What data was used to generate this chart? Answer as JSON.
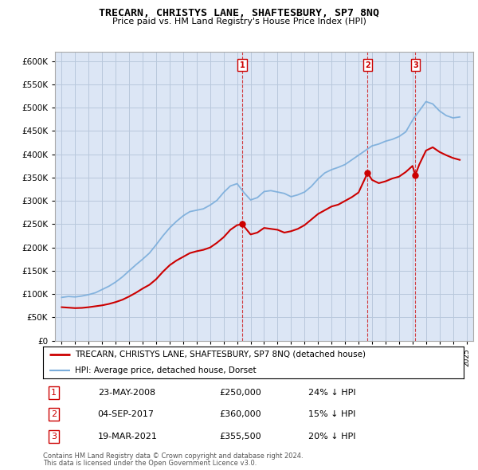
{
  "title": "TRECARN, CHRISTYS LANE, SHAFTESBURY, SP7 8NQ",
  "subtitle": "Price paid vs. HM Land Registry's House Price Index (HPI)",
  "hpi_label": "HPI: Average price, detached house, Dorset",
  "property_label": "TRECARN, CHRISTYS LANE, SHAFTESBURY, SP7 8NQ (detached house)",
  "transactions": [
    {
      "num": 1,
      "date": "23-MAY-2008",
      "price": 250000,
      "pct": "24%",
      "x": 2008.38
    },
    {
      "num": 2,
      "date": "04-SEP-2017",
      "price": 360000,
      "pct": "15%",
      "x": 2017.67
    },
    {
      "num": 3,
      "date": "19-MAR-2021",
      "price": 355500,
      "pct": "20%",
      "x": 2021.21
    }
  ],
  "footer_line1": "Contains HM Land Registry data © Crown copyright and database right 2024.",
  "footer_line2": "This data is licensed under the Open Government Licence v3.0.",
  "ylim": [
    0,
    620000
  ],
  "xlim": [
    1994.5,
    2025.5
  ],
  "yticks": [
    0,
    50000,
    100000,
    150000,
    200000,
    250000,
    300000,
    350000,
    400000,
    450000,
    500000,
    550000,
    600000
  ],
  "plot_bg": "#dce6f5",
  "grid_color": "#b8c8dc",
  "red_color": "#cc0000",
  "blue_color": "#7aaddb",
  "hpi_x": [
    1995,
    1995.5,
    1996,
    1996.5,
    1997,
    1997.5,
    1998,
    1998.5,
    1999,
    1999.5,
    2000,
    2000.5,
    2001,
    2001.5,
    2002,
    2002.5,
    2003,
    2003.5,
    2004,
    2004.5,
    2005,
    2005.5,
    2006,
    2006.5,
    2007,
    2007.5,
    2008,
    2008.5,
    2009,
    2009.5,
    2010,
    2010.5,
    2011,
    2011.5,
    2012,
    2012.5,
    2013,
    2013.5,
    2014,
    2014.5,
    2015,
    2015.5,
    2016,
    2016.5,
    2017,
    2017.5,
    2018,
    2018.5,
    2019,
    2019.5,
    2020,
    2020.5,
    2021,
    2021.5,
    2022,
    2022.5,
    2023,
    2023.5,
    2024,
    2024.5
  ],
  "hpi_y": [
    93000,
    95000,
    94000,
    96000,
    99000,
    103000,
    110000,
    117000,
    126000,
    137000,
    150000,
    163000,
    175000,
    188000,
    206000,
    225000,
    242000,
    256000,
    268000,
    277000,
    280000,
    283000,
    291000,
    301000,
    318000,
    332000,
    337000,
    318000,
    302000,
    307000,
    320000,
    322000,
    319000,
    316000,
    309000,
    313000,
    319000,
    331000,
    347000,
    360000,
    367000,
    372000,
    378000,
    388000,
    398000,
    408000,
    418000,
    422000,
    428000,
    432000,
    438000,
    448000,
    473000,
    493000,
    513000,
    508000,
    493000,
    483000,
    478000,
    480000
  ],
  "red_x": [
    1995,
    1995.5,
    1996,
    1996.5,
    1997,
    1997.5,
    1998,
    1998.5,
    1999,
    1999.5,
    2000,
    2000.5,
    2001,
    2001.5,
    2002,
    2002.5,
    2003,
    2003.5,
    2004,
    2004.5,
    2005,
    2005.5,
    2006,
    2006.5,
    2007,
    2007.5,
    2008,
    2008.38,
    2009,
    2009.5,
    2010,
    2010.5,
    2011,
    2011.5,
    2012,
    2012.5,
    2013,
    2013.5,
    2014,
    2014.5,
    2015,
    2015.5,
    2016,
    2016.5,
    2017,
    2017.67,
    2018,
    2018.5,
    2019,
    2019.5,
    2020,
    2020.5,
    2021,
    2021.21,
    2021.5,
    2022,
    2022.5,
    2023,
    2023.5,
    2024,
    2024.5
  ],
  "red_y": [
    72000,
    71000,
    70000,
    70500,
    72000,
    74000,
    76000,
    79000,
    83000,
    88000,
    95000,
    103000,
    112000,
    120000,
    132000,
    148000,
    162000,
    172000,
    180000,
    188000,
    192000,
    195000,
    200000,
    210000,
    222000,
    238000,
    248000,
    250000,
    228000,
    232000,
    242000,
    240000,
    238000,
    232000,
    235000,
    240000,
    248000,
    260000,
    272000,
    280000,
    288000,
    292000,
    300000,
    308000,
    318000,
    360000,
    345000,
    338000,
    342000,
    348000,
    352000,
    362000,
    375000,
    355500,
    378000,
    408000,
    415000,
    405000,
    398000,
    392000,
    388000
  ]
}
